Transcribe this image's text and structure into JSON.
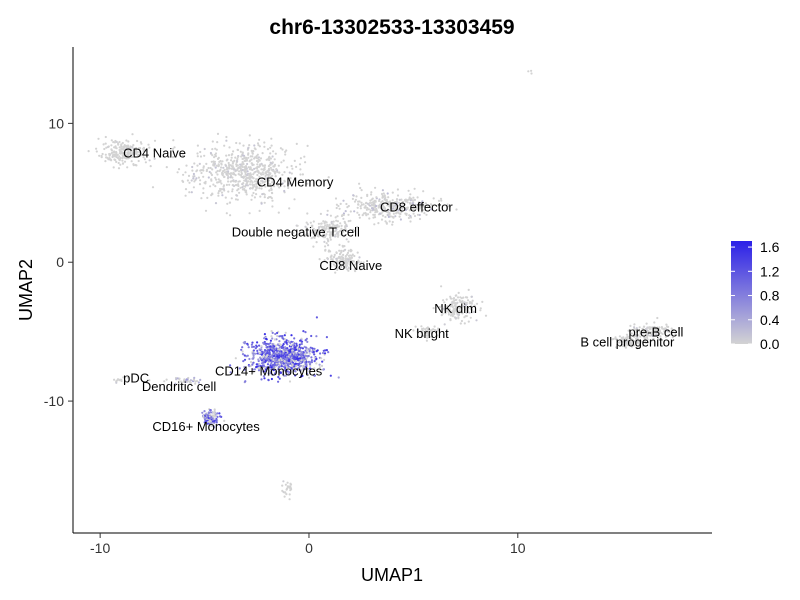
{
  "chart_data": {
    "type": "scatter",
    "title": "chr6-13302533-13303459",
    "xlabel": "UMAP1",
    "ylabel": "UMAP2",
    "xlim": [
      -11.3,
      19.3
    ],
    "ylim": [
      -19.5,
      15.5
    ],
    "x_ticks": [
      -10,
      0,
      10
    ],
    "y_ticks": [
      -10,
      0,
      10
    ],
    "grid": false,
    "low_color": "#d3d3d3",
    "high_color": "#2b20e8",
    "colorbar": {
      "min": 0.0,
      "max": 1.7,
      "ticks": [
        "0.0",
        "0.4",
        "0.8",
        "1.2",
        "1.6"
      ],
      "tick_values": [
        0.0,
        0.4,
        0.8,
        1.2,
        1.6
      ],
      "placement": "right"
    },
    "clusters": [
      {
        "label": "CD4 Naive",
        "x": -8.8,
        "y": 7.9,
        "sx": 1.1,
        "sy": 0.8,
        "n": 220,
        "expr": 0.04,
        "lx": -8.9,
        "ly": 7.9
      },
      {
        "label": "CD4 Memory",
        "x": -3.2,
        "y": 6.5,
        "sx": 2.3,
        "sy": 1.8,
        "n": 650,
        "expr": 0.08,
        "lx": -2.5,
        "ly": 5.8
      },
      {
        "label": "CD8 effector",
        "x": 3.8,
        "y": 4.0,
        "sx": 2.0,
        "sy": 0.9,
        "n": 350,
        "expr": 0.12,
        "lx": 3.4,
        "ly": 4.0
      },
      {
        "label": "Double negative T cell",
        "x": 1.0,
        "y": 2.3,
        "sx": 1.2,
        "sy": 0.8,
        "n": 160,
        "expr": 0.05,
        "lx": -3.7,
        "ly": 2.2
      },
      {
        "label": "CD8 Naive",
        "x": 1.7,
        "y": 0.2,
        "sx": 0.8,
        "sy": 0.8,
        "n": 140,
        "expr": 0.05,
        "lx": 0.5,
        "ly": -0.2
      },
      {
        "label": "NK dim",
        "x": 7.2,
        "y": -3.3,
        "sx": 0.8,
        "sy": 0.8,
        "n": 160,
        "expr": 0.06,
        "lx": 6.0,
        "ly": -3.3
      },
      {
        "label": "NK bright",
        "x": 5.7,
        "y": -5.0,
        "sx": 0.5,
        "sy": 0.4,
        "n": 50,
        "expr": 0.05,
        "lx": 4.1,
        "ly": -5.1
      },
      {
        "label": "pre-B cell",
        "x": 16.5,
        "y": -5.0,
        "sx": 0.9,
        "sy": 0.5,
        "n": 120,
        "expr": 0.06,
        "lx": 15.3,
        "ly": -5.0
      },
      {
        "label": "B cell progenitor",
        "x": 15.3,
        "y": -5.7,
        "sx": 0.7,
        "sy": 0.4,
        "n": 90,
        "expr": 0.05,
        "lx": 13.0,
        "ly": -5.7
      },
      {
        "label": "CD14+ Monocytes",
        "x": -1.2,
        "y": -6.8,
        "sx": 1.5,
        "sy": 1.2,
        "n": 850,
        "expr": 0.8,
        "lx": -4.5,
        "ly": -7.8
      },
      {
        "label": "CD16+ Monocytes",
        "x": -4.7,
        "y": -11.2,
        "sx": 0.4,
        "sy": 0.5,
        "n": 110,
        "expr": 0.7,
        "lx": -7.5,
        "ly": -11.8
      },
      {
        "label": "Dendritic cell",
        "x": -5.8,
        "y": -8.6,
        "sx": 0.7,
        "sy": 0.25,
        "n": 40,
        "expr": 0.3,
        "lx": -8.0,
        "ly": -8.9
      },
      {
        "label": "pDC",
        "x": -9.0,
        "y": -8.5,
        "sx": 0.25,
        "sy": 0.25,
        "n": 12,
        "expr": 0.05,
        "lx": -8.9,
        "ly": -8.3
      },
      {
        "label": "",
        "x": -1.0,
        "y": -16.3,
        "sx": 0.25,
        "sy": 0.6,
        "n": 25,
        "expr": 0.05,
        "lx": 0,
        "ly": 0
      },
      {
        "label": "",
        "x": 10.6,
        "y": 13.7,
        "sx": 0.1,
        "sy": 0.1,
        "n": 3,
        "expr": 0.05,
        "lx": 0,
        "ly": 0
      }
    ]
  }
}
